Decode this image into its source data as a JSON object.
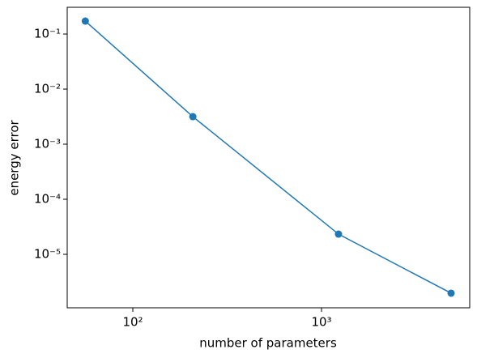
{
  "chart_data": {
    "type": "line",
    "xlabel": "number of parameters",
    "ylabel": "energy error",
    "x": [
      56,
      208,
      1230,
      4860
    ],
    "series": [
      {
        "color": "#1f77b4",
        "values": [
          0.172,
          0.00316,
          2.33e-05,
          1.97e-06
        ]
      }
    ],
    "xscale": "log",
    "yscale": "log",
    "xlim": [
      44.9,
      6100
    ],
    "ylim": [
      1.07e-06,
      0.306
    ],
    "xticks": [
      {
        "value": 100,
        "label": "10²"
      },
      {
        "value": 1000,
        "label": "10³"
      }
    ],
    "yticks": [
      {
        "value": 0.1,
        "label": "10⁻¹"
      },
      {
        "value": 0.01,
        "label": "10⁻²"
      },
      {
        "value": 0.001,
        "label": "10⁻³"
      },
      {
        "value": 0.0001,
        "label": "10⁻⁴"
      },
      {
        "value": 1e-05,
        "label": "10⁻⁵"
      }
    ],
    "grid": false,
    "marker": "circle"
  }
}
